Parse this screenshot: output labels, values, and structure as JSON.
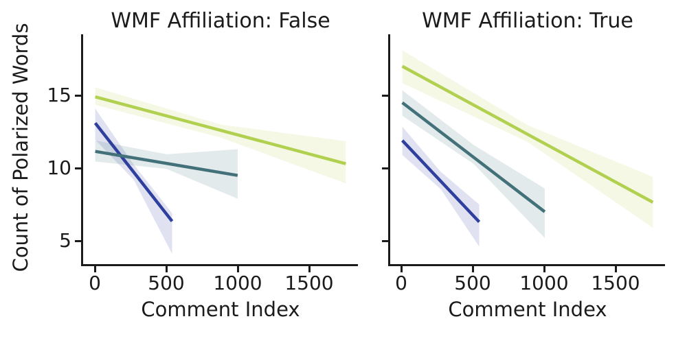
{
  "ylabel": "Count of Polarized Words",
  "colors": {
    "blue": "#2f3f9e",
    "teal": "#427179",
    "green": "#b2d050",
    "foreground": "#1b1b1b",
    "background": "#ffffff",
    "band_opacity": 0.15
  },
  "chart_data": [
    {
      "type": "line",
      "title": "WMF Affiliation: False",
      "xlabel": "Comment Index",
      "ylabel": "Count of Polarized Words",
      "xlim": [
        -85,
        1845
      ],
      "ylim": [
        3.4,
        19.2
      ],
      "xticks": [
        0,
        500,
        1000,
        1500
      ],
      "yticks": [
        5,
        10,
        15
      ],
      "grid": false,
      "legend": "none",
      "series": [
        {
          "name": "blue",
          "color": "#2f3f9e",
          "x": [
            0,
            540
          ],
          "y": [
            13.1,
            6.35
          ],
          "band": {
            "x": [
              0,
              270,
              540
            ],
            "upper": [
              14.1,
              10.25,
              6.9
            ],
            "lower": [
              11.95,
              9.2,
              4.1
            ]
          }
        },
        {
          "name": "teal",
          "color": "#427179",
          "x": [
            0,
            1000
          ],
          "y": [
            11.15,
            9.5
          ],
          "band": {
            "x": [
              0,
              500,
              1000
            ],
            "upper": [
              11.9,
              10.95,
              11.3
            ],
            "lower": [
              10.45,
              9.95,
              7.9
            ]
          }
        },
        {
          "name": "green",
          "color": "#b2d050",
          "x": [
            0,
            1760
          ],
          "y": [
            14.9,
            10.3
          ],
          "band": {
            "x": [
              0,
              880,
              1760
            ],
            "upper": [
              15.55,
              13.0,
              11.85
            ],
            "lower": [
              14.35,
              12.1,
              8.95
            ]
          }
        }
      ]
    },
    {
      "type": "line",
      "title": "WMF Affiliation: True",
      "xlabel": "Comment Index",
      "ylabel": "Count of Polarized Words",
      "xlim": [
        -85,
        1845
      ],
      "ylim": [
        3.4,
        19.2
      ],
      "xticks": [
        0,
        500,
        1000,
        1500
      ],
      "yticks": [
        5,
        10,
        15
      ],
      "grid": false,
      "legend": "none",
      "series": [
        {
          "name": "blue",
          "color": "#2f3f9e",
          "x": [
            0,
            540
          ],
          "y": [
            11.9,
            6.3
          ],
          "band": {
            "x": [
              0,
              270,
              540
            ],
            "upper": [
              12.85,
              9.75,
              7.5
            ],
            "lower": [
              10.9,
              8.55,
              4.6
            ]
          }
        },
        {
          "name": "teal",
          "color": "#427179",
          "x": [
            0,
            1000
          ],
          "y": [
            14.5,
            7.0
          ],
          "band": {
            "x": [
              0,
              500,
              1000
            ],
            "upper": [
              15.35,
              11.6,
              8.6
            ],
            "lower": [
              13.6,
              10.3,
              5.2
            ]
          }
        },
        {
          "name": "green",
          "color": "#b2d050",
          "x": [
            0,
            1760
          ],
          "y": [
            17.0,
            7.65
          ],
          "band": {
            "x": [
              0,
              880,
              1760
            ],
            "upper": [
              18.1,
              12.95,
              9.4
            ],
            "lower": [
              15.85,
              11.8,
              5.9
            ]
          }
        }
      ]
    }
  ]
}
